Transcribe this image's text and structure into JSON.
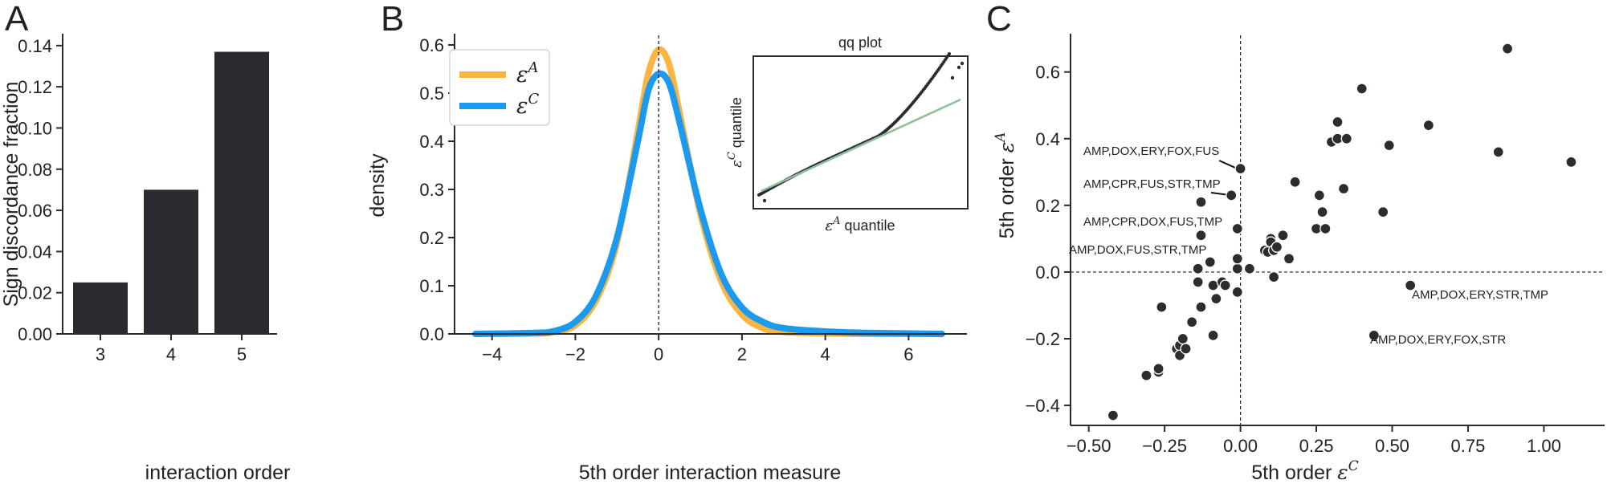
{
  "panel_letters": [
    "A",
    "B",
    "C"
  ],
  "chart_data": [
    {
      "type": "bar",
      "panel": "A",
      "categories": [
        "3",
        "4",
        "5"
      ],
      "values": [
        0.025,
        0.07,
        0.137
      ],
      "xlabel": "interaction order",
      "ylabel": "Sign discordance fraction",
      "ylim": [
        0,
        0.145
      ],
      "yticks": [
        "0.00",
        "0.02",
        "0.04",
        "0.06",
        "0.08",
        "0.10",
        "0.12",
        "0.14"
      ],
      "bar_color": "#2b2a30"
    },
    {
      "type": "line",
      "panel": "B",
      "xlabel": "5th order interaction measure",
      "ylabel": "density",
      "xlim": [
        -4.9,
        7.4
      ],
      "ylim": [
        0,
        0.62
      ],
      "xticks": [
        "−4",
        "−2",
        "0",
        "2",
        "4",
        "6"
      ],
      "yticks": [
        "0.0",
        "0.1",
        "0.2",
        "0.3",
        "0.4",
        "0.5",
        "0.6"
      ],
      "vline_x": 0,
      "series": [
        {
          "name": "ε",
          "superscript": "A",
          "color": "#fbb540",
          "x": [
            -4.4,
            -3.0,
            -2.5,
            -2.0,
            -1.5,
            -1.0,
            -0.5,
            -0.25,
            0.0,
            0.25,
            0.5,
            1.0,
            1.5,
            2.0,
            2.5,
            3.0,
            4.0,
            5.0,
            6.8
          ],
          "y": [
            0.0,
            0.001,
            0.004,
            0.018,
            0.07,
            0.19,
            0.42,
            0.54,
            0.59,
            0.56,
            0.46,
            0.25,
            0.11,
            0.04,
            0.012,
            0.004,
            0.001,
            0.0,
            0.0
          ]
        },
        {
          "name": "ε",
          "superscript": "C",
          "color": "#1b9af0",
          "x": [
            -4.4,
            -3.0,
            -2.5,
            -2.0,
            -1.5,
            -1.0,
            -0.5,
            -0.25,
            0.0,
            0.25,
            0.5,
            1.0,
            1.5,
            2.0,
            2.5,
            3.0,
            4.0,
            5.0,
            6.8
          ],
          "y": [
            0.0,
            0.002,
            0.006,
            0.025,
            0.08,
            0.2,
            0.4,
            0.505,
            0.54,
            0.52,
            0.44,
            0.26,
            0.125,
            0.055,
            0.025,
            0.012,
            0.005,
            0.002,
            0.0
          ]
        }
      ],
      "inset": {
        "type": "scatter",
        "title": "qq plot",
        "xlabel_prefix": "ε",
        "xlabel_sup": "A",
        "xlabel_suffix": " quantile",
        "ylabel_prefix": "ε",
        "ylabel_sup": "C",
        "ylabel_suffix": " quantile",
        "reference_line_color": "#8fbf9a"
      }
    },
    {
      "type": "scatter",
      "panel": "C",
      "xlabel_prefix": "5th order ",
      "xlabel_sym": "ε",
      "xlabel_sup": "C",
      "ylabel_prefix": "5th order ",
      "ylabel_sym": "ε",
      "ylabel_sup": "A",
      "xlim": [
        -0.56,
        1.2
      ],
      "ylim": [
        -0.46,
        0.71
      ],
      "xticks": [
        "−0.50",
        "−0.25",
        "0.00",
        "0.25",
        "0.50",
        "0.75",
        "1.00"
      ],
      "yticks": [
        "−0.4",
        "−0.2",
        "0.0",
        "0.2",
        "0.4",
        "0.6"
      ],
      "point_color": "#2b2f2c",
      "points": [
        [
          -0.42,
          -0.43
        ],
        [
          -0.31,
          -0.31
        ],
        [
          -0.27,
          -0.3
        ],
        [
          -0.27,
          -0.29
        ],
        [
          -0.26,
          -0.105
        ],
        [
          -0.21,
          -0.23
        ],
        [
          -0.2,
          -0.22
        ],
        [
          -0.2,
          -0.25
        ],
        [
          -0.19,
          -0.2
        ],
        [
          -0.18,
          -0.23
        ],
        [
          -0.16,
          -0.15
        ],
        [
          -0.14,
          -0.03
        ],
        [
          -0.14,
          0.01
        ],
        [
          -0.13,
          0.11
        ],
        [
          -0.13,
          -0.105
        ],
        [
          -0.13,
          0.21
        ],
        [
          -0.1,
          0.03
        ],
        [
          -0.09,
          -0.04
        ],
        [
          -0.09,
          -0.19
        ],
        [
          -0.08,
          -0.08
        ],
        [
          -0.06,
          -0.03
        ],
        [
          -0.05,
          -0.04
        ],
        [
          -0.03,
          0.23
        ],
        [
          -0.01,
          0.01
        ],
        [
          -0.01,
          0.13
        ],
        [
          -0.01,
          0.04
        ],
        [
          0.0,
          0.31
        ],
        [
          -0.01,
          -0.06
        ],
        [
          0.03,
          0.01
        ],
        [
          0.08,
          0.065
        ],
        [
          0.09,
          0.06
        ],
        [
          0.1,
          0.1
        ],
        [
          0.1,
          0.09
        ],
        [
          0.11,
          0.065
        ],
        [
          0.11,
          -0.015
        ],
        [
          0.12,
          0.075
        ],
        [
          0.14,
          0.11
        ],
        [
          0.16,
          0.04
        ],
        [
          0.18,
          0.27
        ],
        [
          0.25,
          0.13
        ],
        [
          0.26,
          0.23
        ],
        [
          0.27,
          0.18
        ],
        [
          0.28,
          0.13
        ],
        [
          0.3,
          0.39
        ],
        [
          0.32,
          0.4
        ],
        [
          0.32,
          0.45
        ],
        [
          0.34,
          0.25
        ],
        [
          0.35,
          0.4
        ],
        [
          0.4,
          0.55
        ],
        [
          0.44,
          -0.19
        ],
        [
          0.47,
          0.18
        ],
        [
          0.49,
          0.38
        ],
        [
          0.56,
          -0.04
        ],
        [
          0.62,
          0.44
        ],
        [
          0.85,
          0.36
        ],
        [
          0.88,
          0.67
        ],
        [
          1.09,
          0.33
        ]
      ],
      "annotations": [
        {
          "text": "AMP,DOX,ERY,FOX,FUS",
          "x": -0.01,
          "y": 0.31
        },
        {
          "text": "AMP,CPR,FUS,STR,TMP",
          "x": -0.03,
          "y": 0.23
        },
        {
          "text": "AMP,CPR,DOX,FUS,TMP",
          "x": -0.13,
          "y": 0.21
        },
        {
          "text": "AMP,DOX,FUS,STR,TMP",
          "x": -0.13,
          "y": 0.11
        },
        {
          "text": "AMP,DOX,ERY,STR,TMP",
          "x": 0.56,
          "y": -0.04
        },
        {
          "text": "AMP,DOX,ERY,FOX,STR",
          "x": 0.44,
          "y": -0.19
        }
      ]
    }
  ]
}
